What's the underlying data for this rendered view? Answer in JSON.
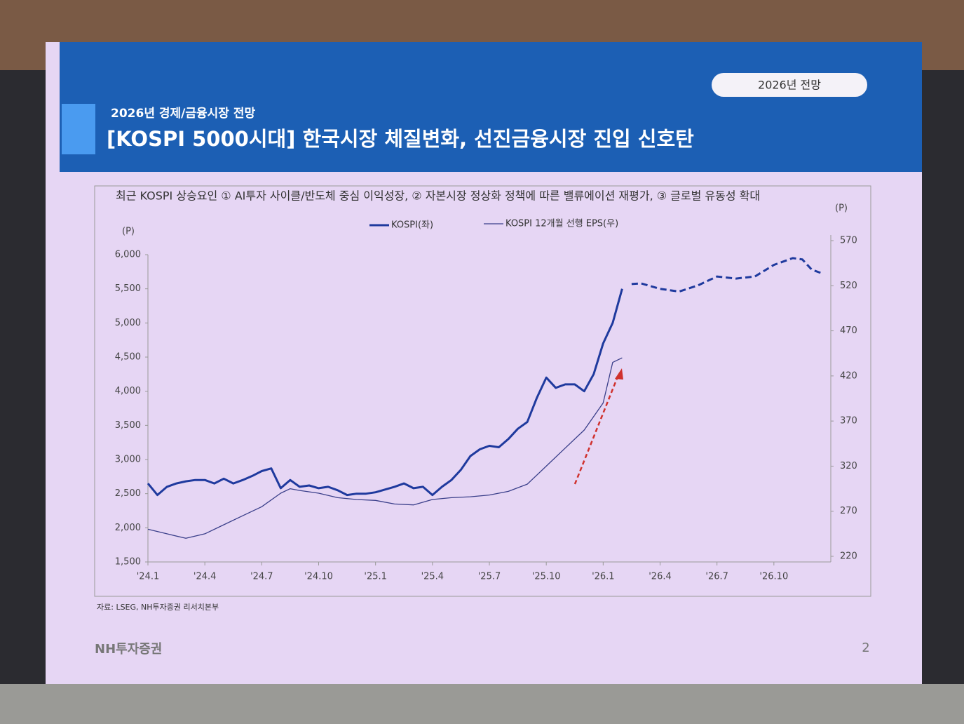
{
  "slide": {
    "badge": "2026년 전망",
    "kicker": "2026년 경제/금융시장 전망",
    "title": "[KOSPI 5000시대] 한국시장 체질변화, 선진금융시장 진입 신호탄",
    "bullet": "최근 KOSPI 상승요인 ① AI투자 사이클/반도체 중심 이익성장, ② 자본시장 정상화 정책에 따른 밸류에이션 재평가, ③ 글로벌 유동성 확대",
    "source": "자료: LSEG, NH투자증권 리서치본부",
    "logo": "NH투자증권",
    "page": "2"
  },
  "chart_data": {
    "type": "line",
    "ylabel": "(P)",
    "y2label": "(P)",
    "xlim": [
      0,
      36
    ],
    "xticks": [
      {
        "value": 0,
        "label": "'24.1"
      },
      {
        "value": 3,
        "label": "'24.4"
      },
      {
        "value": 6,
        "label": "'24.7"
      },
      {
        "value": 9,
        "label": "'24.10"
      },
      {
        "value": 12,
        "label": "'25.1"
      },
      {
        "value": 15,
        "label": "'25.4"
      },
      {
        "value": 18,
        "label": "'25.7"
      },
      {
        "value": 21,
        "label": "'25.10"
      },
      {
        "value": 24,
        "label": "'26.1"
      },
      {
        "value": 27,
        "label": "'26.4"
      },
      {
        "value": 30,
        "label": "'26.7"
      },
      {
        "value": 33,
        "label": "'26.10"
      }
    ],
    "ylim": [
      1500,
      6000
    ],
    "yticks": [
      {
        "value": 1500,
        "label": "1,500"
      },
      {
        "value": 2000,
        "label": "2,000"
      },
      {
        "value": 2500,
        "label": "2,500"
      },
      {
        "value": 3000,
        "label": "3,000"
      },
      {
        "value": 3500,
        "label": "3,500"
      },
      {
        "value": 4000,
        "label": "4,000"
      },
      {
        "value": 4500,
        "label": "4,500"
      },
      {
        "value": 5000,
        "label": "5,000"
      },
      {
        "value": 5500,
        "label": "5,500"
      },
      {
        "value": 6000,
        "label": "6,000"
      }
    ],
    "y2lim": [
      220,
      570
    ],
    "y2ticks": [
      220,
      270,
      320,
      370,
      420,
      470,
      520,
      570
    ],
    "series": [
      {
        "name": "KOSPI(좌)",
        "color": "#1f3a9e",
        "x": [
          0,
          0.5,
          1,
          1.5,
          2,
          2.5,
          3,
          3.5,
          4,
          4.5,
          5,
          5.5,
          6,
          6.5,
          7,
          7.5,
          8,
          8.5,
          9,
          9.5,
          10,
          10.5,
          11,
          11.5,
          12,
          12.5,
          13,
          13.5,
          14,
          14.5,
          15,
          15.5,
          16,
          16.5,
          17,
          17.5,
          18,
          18.5,
          19,
          19.5,
          20,
          20.5,
          21,
          21.5,
          22,
          22.5,
          23,
          23.5,
          24,
          24.5,
          25
        ],
        "values": [
          2650,
          2480,
          2600,
          2650,
          2680,
          2700,
          2700,
          2650,
          2720,
          2650,
          2700,
          2760,
          2830,
          2870,
          2580,
          2700,
          2600,
          2620,
          2580,
          2600,
          2550,
          2480,
          2500,
          2500,
          2520,
          2560,
          2600,
          2650,
          2580,
          2600,
          2480,
          2600,
          2700,
          2850,
          3050,
          3150,
          3200,
          3180,
          3300,
          3450,
          3550,
          3900,
          4200,
          4050,
          4100,
          4100,
          4000,
          4250,
          4700,
          5000,
          5500
        ],
        "forecast": {
          "x": [
            25.5,
            26,
            27,
            28,
            29,
            30,
            31,
            32,
            33,
            34,
            34.5,
            35,
            35.6
          ],
          "values": [
            5570,
            5580,
            5500,
            5460,
            5550,
            5680,
            5650,
            5680,
            5850,
            5950,
            5930,
            5780,
            5720
          ]
        }
      },
      {
        "name": "KOSPI 12개월 선행 EPS(우)",
        "color": "#3a3f8a",
        "axis": "y2",
        "x": [
          0,
          1,
          2,
          3,
          4,
          5,
          6,
          7,
          7.5,
          8,
          9,
          10,
          11,
          12,
          13,
          14,
          15,
          16,
          17,
          18,
          19,
          20,
          21,
          22,
          23,
          24,
          24.5,
          25
        ],
        "values": [
          250,
          245,
          240,
          245,
          255,
          265,
          275,
          290,
          295,
          293,
          290,
          285,
          283,
          282,
          278,
          277,
          283,
          285,
          286,
          288,
          292,
          300,
          320,
          340,
          360,
          390,
          435,
          440
        ]
      }
    ]
  }
}
